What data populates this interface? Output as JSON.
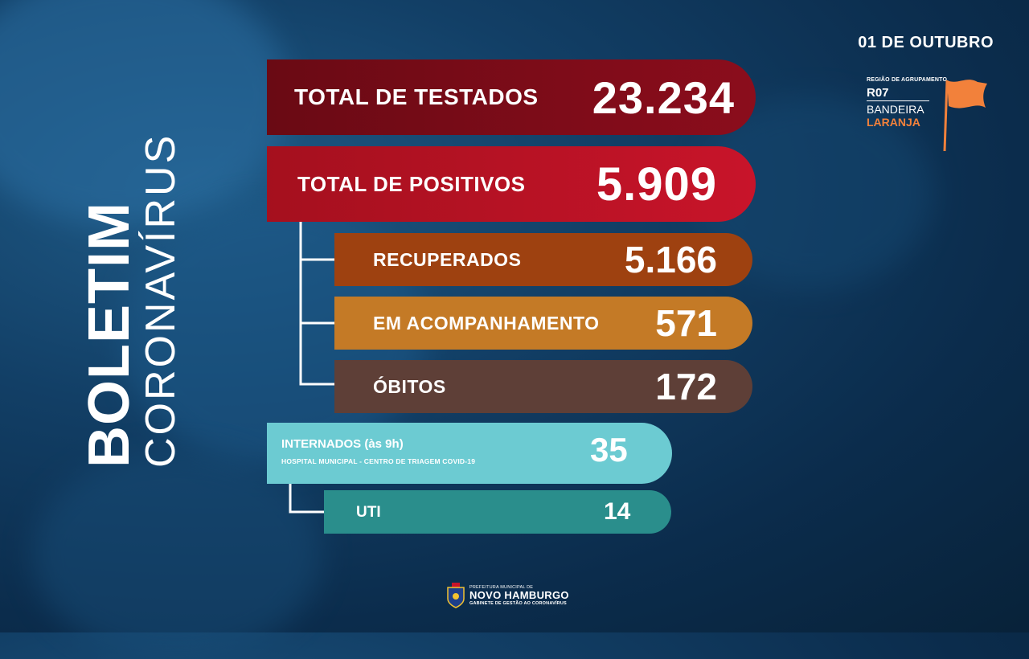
{
  "title": {
    "bold": "BOLETIM",
    "light": "CORONAVÍRUS"
  },
  "date": "01 DE OUTUBRO",
  "region": {
    "small_label": "REGIÃO DE AGRUPAMENTO",
    "code": "R07",
    "flag_word": "BANDEIRA",
    "flag_color_name": "LARANJA",
    "flag_color": "#f2813b"
  },
  "stats": {
    "testados": {
      "label": "TOTAL DE TESTADOS",
      "value": "23.234"
    },
    "positivos": {
      "label": "TOTAL DE POSITIVOS",
      "value": "5.909"
    },
    "recuperados": {
      "label": "RECUPERADOS",
      "value": "5.166"
    },
    "acompanhamento": {
      "label": "EM ACOMPANHAMENTO",
      "value": "571"
    },
    "obitos": {
      "label": "ÓBITOS",
      "value": "172"
    }
  },
  "hospital": {
    "internados_label": "INTERNADOS (às 9h)",
    "internados_sub": "HOSPITAL MUNICIPAL - CENTRO DE TRIAGEM COVID-19",
    "internados_value": "35",
    "uti_label": "UTI",
    "uti_value": "14"
  },
  "footer": {
    "small": "PREFEITURA MUNICIPAL DE",
    "name": "NOVO HAMBURGO",
    "sub": "GABINETE DE GESTÃO AO CORONAVÍRUS"
  },
  "colors": {
    "testados": "#8b0d1c",
    "positivos": "#c8142a",
    "recuperados": "#9e4110",
    "acompanhamento": "#c47a26",
    "obitos": "#5e3f37",
    "internados": "#6ccbd2",
    "uti": "#2a8e8c"
  }
}
